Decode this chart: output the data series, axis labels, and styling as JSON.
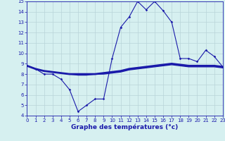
{
  "xlabel": "Graphe des températures (°c)",
  "x_hourly": [
    0,
    1,
    2,
    3,
    4,
    5,
    6,
    7,
    8,
    9,
    10,
    11,
    12,
    13,
    14,
    15,
    16,
    17,
    18,
    19,
    20,
    21,
    22,
    23
  ],
  "temp_line": [
    8.8,
    8.5,
    8.0,
    8.0,
    7.5,
    6.5,
    4.4,
    5.0,
    5.6,
    5.6,
    9.5,
    12.5,
    13.5,
    15.0,
    14.2,
    15.0,
    14.1,
    13.0,
    9.5,
    9.5,
    9.2,
    10.3,
    9.7,
    8.7
  ],
  "trend_line": [
    8.8,
    8.5,
    8.3,
    8.2,
    8.1,
    8.0,
    8.0,
    8.0,
    8.0,
    8.1,
    8.2,
    8.3,
    8.5,
    8.6,
    8.7,
    8.8,
    8.9,
    9.0,
    8.9,
    8.8,
    8.8,
    8.8,
    8.8,
    8.7
  ],
  "trend_line2": [
    8.8,
    8.5,
    8.3,
    8.2,
    8.1,
    8.0,
    7.9,
    7.9,
    8.0,
    8.0,
    8.1,
    8.2,
    8.4,
    8.5,
    8.6,
    8.7,
    8.8,
    8.9,
    8.8,
    8.7,
    8.7,
    8.7,
    8.7,
    8.6
  ],
  "line_color": "#1a1aaa",
  "bg_color": "#d6f0f0",
  "grid_color": "#b8d4d8",
  "ylim": [
    4,
    15
  ],
  "xlim": [
    0,
    23
  ],
  "yticks": [
    4,
    5,
    6,
    7,
    8,
    9,
    10,
    11,
    12,
    13,
    14,
    15
  ],
  "xticks": [
    0,
    1,
    2,
    3,
    4,
    5,
    6,
    7,
    8,
    9,
    10,
    11,
    12,
    13,
    14,
    15,
    16,
    17,
    18,
    19,
    20,
    21,
    22,
    23
  ],
  "xlabel_fontsize": 6.5,
  "tick_fontsize": 5.0
}
